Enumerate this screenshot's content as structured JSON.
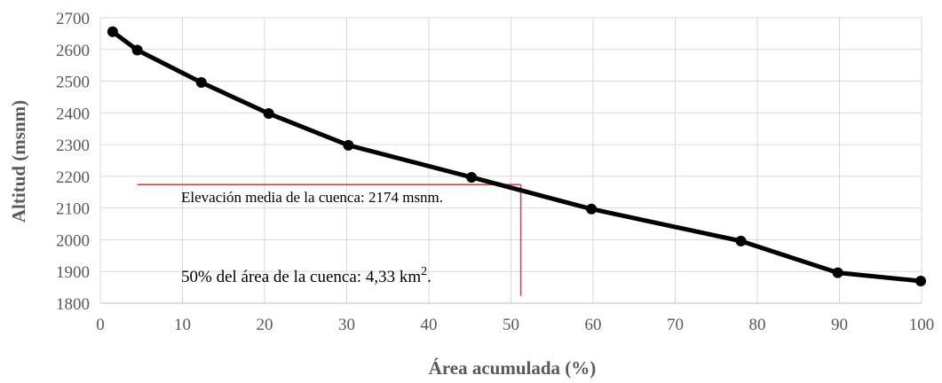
{
  "chart_data": {
    "type": "line",
    "title": "",
    "xlabel": "Área acumulada  (%)",
    "ylabel": "Altitud  (msnm)",
    "xlim": [
      0,
      100
    ],
    "ylim": [
      1800,
      2700
    ],
    "xticks": [
      0,
      10,
      20,
      30,
      40,
      50,
      60,
      70,
      80,
      90,
      100
    ],
    "yticks": [
      1800,
      1900,
      2000,
      2100,
      2200,
      2300,
      2400,
      2500,
      2600,
      2700
    ],
    "grid": true,
    "series": [
      {
        "x": [
          1.5,
          4.5,
          12.3,
          20.5,
          30.2,
          45.2,
          59.8,
          78.0,
          89.8,
          99.9
        ],
        "y": [
          2656,
          2598,
          2496,
          2398,
          2298,
          2197,
          2097,
          1996,
          1896,
          1870
        ]
      }
    ],
    "reference_lines": {
      "mean_elevation": 2174,
      "area_50_x": 51.2,
      "h_line_start_x": 4.5,
      "v_line_end_y": 1823
    },
    "annotations": {
      "mean_elevation_text": "Elevación media de la cuenca:  2174 msnm.",
      "area_text": "50% del área de la cuenca: 4,33 km",
      "area_text_sup": "2",
      "area_text_end": "."
    },
    "colors": {
      "line": "#000000",
      "reference": "#c0504d",
      "grid": "#d9d9d9",
      "text": "#595959"
    }
  }
}
